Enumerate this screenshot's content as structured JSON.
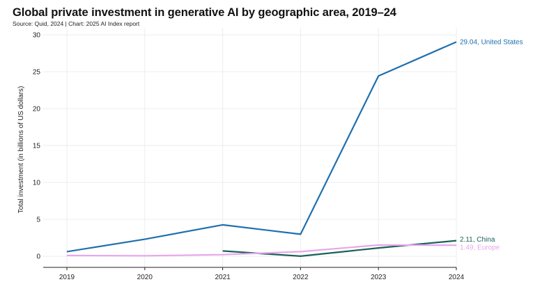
{
  "header": {
    "title": "Global private investment in generative AI by geographic area, 2019–24",
    "subtitle": "Source: Quid, 2024 | Chart: 2025 AI Index report"
  },
  "chart_data": {
    "type": "line",
    "title": "Global private investment in generative AI by geographic area, 2019–24",
    "subtitle": "Source: Quid, 2024 | Chart: 2025 AI Index report",
    "xlabel": "",
    "ylabel": "Total investment (in billions of US dollars)",
    "x": [
      2019,
      2020,
      2021,
      2022,
      2023,
      2024
    ],
    "xticks": [
      "2019",
      "2020",
      "2021",
      "2022",
      "2023",
      "2024"
    ],
    "ylim": [
      0,
      30
    ],
    "yticks": [
      0,
      5,
      10,
      15,
      20,
      25,
      30
    ],
    "grid": true,
    "series": [
      {
        "name": "United States",
        "color": "#1f6fae",
        "values": [
          0.62,
          2.3,
          4.25,
          2.98,
          24.42,
          29.04
        ],
        "end_label": "29.04, United States"
      },
      {
        "name": "China",
        "color": "#1a6258",
        "values": [
          null,
          null,
          0.72,
          0.01,
          1.12,
          2.11
        ],
        "end_label": "2.11, China"
      },
      {
        "name": "Europe",
        "color": "#e7a7ec",
        "values": [
          0.1,
          0.06,
          0.22,
          0.62,
          1.52,
          1.49
        ],
        "end_label": "1.49, Europe"
      }
    ]
  }
}
